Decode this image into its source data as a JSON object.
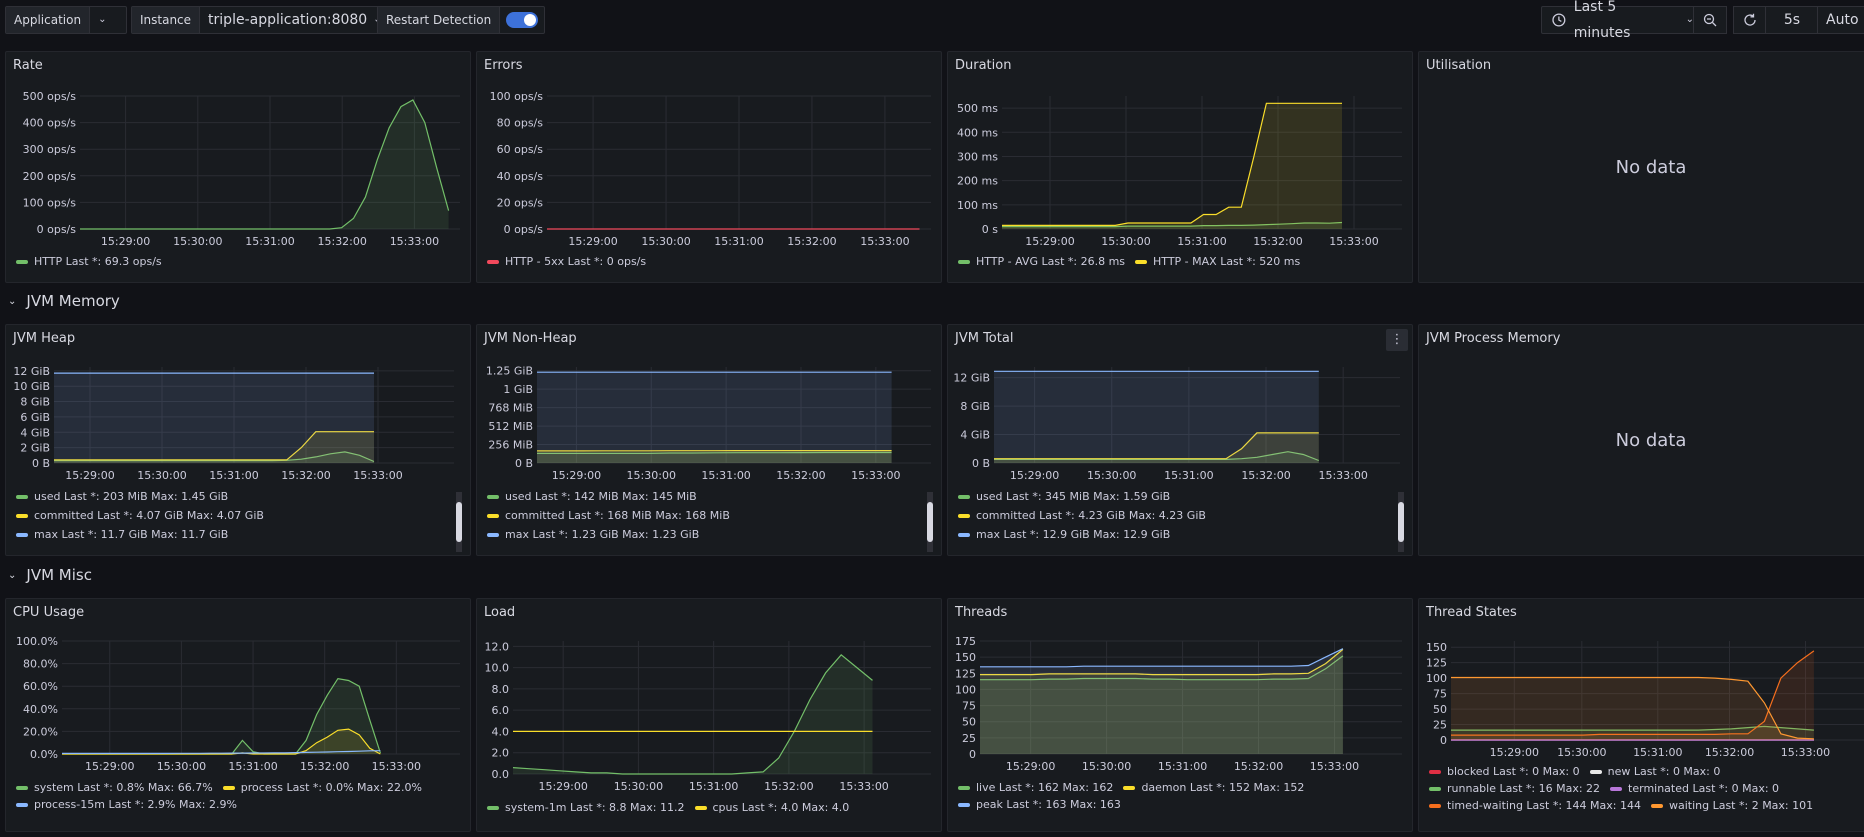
{
  "toolbar": {
    "application_label": "Application",
    "instance_label": "Instance",
    "instance_value": "triple-application:8080",
    "restart_label": "Restart Detection",
    "time_range": "Last 5 minutes",
    "refresh_interval": "5s",
    "auto_label": "Auto"
  },
  "rows": {
    "jvm_memory": "JVM Memory",
    "jvm_misc": "JVM Misc"
  },
  "no_data": "No data",
  "x_ticks": [
    "15:29:00",
    "15:30:00",
    "15:31:00",
    "15:32:00",
    "15:33:00"
  ],
  "colors": {
    "green": "#73bf69",
    "yellow": "#fade2a",
    "blue": "#8ab8ff",
    "red": "#f2495c",
    "orange": "#ff9830",
    "darkorange": "#f56e1d",
    "purple": "#b877d9",
    "white": "#e8e8e8",
    "bred": "#e02f44"
  },
  "panels": {
    "rate": {
      "title": "Rate",
      "y_ticks": [
        "500 ops/s",
        "400 ops/s",
        "300 ops/s",
        "200 ops/s",
        "100 ops/s",
        "0 ops/s"
      ],
      "legend": [
        {
          "color": "green",
          "text": "HTTP  Last *: 69.3 ops/s"
        }
      ]
    },
    "errors": {
      "title": "Errors",
      "y_ticks": [
        "100 ops/s",
        "80 ops/s",
        "60 ops/s",
        "40 ops/s",
        "20 ops/s",
        "0 ops/s"
      ],
      "legend": [
        {
          "color": "red",
          "text": "HTTP - 5xx  Last *: 0 ops/s"
        }
      ]
    },
    "duration": {
      "title": "Duration",
      "y_ticks": [
        "500 ms",
        "400 ms",
        "300 ms",
        "200 ms",
        "100 ms",
        "0 s"
      ],
      "legend": [
        {
          "color": "green",
          "text": "HTTP - AVG  Last *: 26.8 ms"
        },
        {
          "color": "yellow",
          "text": "HTTP - MAX  Last *: 520 ms"
        }
      ]
    },
    "utilisation": {
      "title": "Utilisation"
    },
    "heap": {
      "title": "JVM Heap",
      "y_ticks": [
        "12 GiB",
        "10 GiB",
        "8 GiB",
        "6 GiB",
        "4 GiB",
        "2 GiB",
        "0 B"
      ],
      "legend": [
        {
          "color": "green",
          "text": "used  Last *: 203 MiB  Max: 1.45 GiB"
        },
        {
          "color": "yellow",
          "text": "committed  Last *: 4.07 GiB  Max: 4.07 GiB"
        },
        {
          "color": "blue",
          "text": "max  Last *: 11.7 GiB  Max: 11.7 GiB"
        }
      ]
    },
    "nonheap": {
      "title": "JVM Non-Heap",
      "y_ticks": [
        "1.25 GiB",
        "1 GiB",
        "768 MiB",
        "512 MiB",
        "256 MiB",
        "0 B"
      ],
      "legend": [
        {
          "color": "green",
          "text": "used  Last *: 142 MiB  Max: 145 MiB"
        },
        {
          "color": "yellow",
          "text": "committed  Last *: 168 MiB  Max: 168 MiB"
        },
        {
          "color": "blue",
          "text": "max  Last *: 1.23 GiB  Max: 1.23 GiB"
        }
      ]
    },
    "total": {
      "title": "JVM Total",
      "y_ticks": [
        "12 GiB",
        "8 GiB",
        "4 GiB",
        "0 B"
      ],
      "legend": [
        {
          "color": "green",
          "text": "used  Last *: 345 MiB  Max: 1.59 GiB"
        },
        {
          "color": "yellow",
          "text": "committed  Last *: 4.23 GiB  Max: 4.23 GiB"
        },
        {
          "color": "blue",
          "text": "max  Last *: 12.9 GiB  Max: 12.9 GiB"
        }
      ]
    },
    "process_mem": {
      "title": "JVM Process Memory"
    },
    "cpu": {
      "title": "CPU Usage",
      "y_ticks": [
        "100.0%",
        "80.0%",
        "60.0%",
        "40.0%",
        "20.0%",
        "0.0%"
      ],
      "legend": [
        {
          "color": "green",
          "text": "system  Last *: 0.8%  Max: 66.7%"
        },
        {
          "color": "yellow",
          "text": "process  Last *: 0.0%  Max: 22.0%"
        },
        {
          "color": "blue",
          "text": "process-15m  Last *: 2.9%  Max: 2.9%"
        }
      ]
    },
    "load": {
      "title": "Load",
      "y_ticks": [
        "12.0",
        "10.0",
        "8.0",
        "6.0",
        "4.0",
        "2.0",
        "0.0"
      ],
      "legend": [
        {
          "color": "green",
          "text": "system-1m  Last *: 8.8  Max: 11.2"
        },
        {
          "color": "yellow",
          "text": "cpus  Last *: 4.0  Max: 4.0"
        }
      ]
    },
    "threads": {
      "title": "Threads",
      "y_ticks": [
        "175",
        "150",
        "125",
        "100",
        "75",
        "50",
        "25",
        "0"
      ],
      "legend": [
        {
          "color": "green",
          "text": "live  Last *: 162  Max: 162"
        },
        {
          "color": "yellow",
          "text": "daemon  Last *: 152  Max: 152"
        },
        {
          "color": "blue",
          "text": "peak  Last *: 163  Max: 163"
        }
      ]
    },
    "thread_states": {
      "title": "Thread States",
      "y_ticks": [
        "150",
        "125",
        "100",
        "75",
        "50",
        "25",
        "0"
      ],
      "legend": [
        {
          "color": "bred",
          "text": "blocked  Last *: 0  Max: 0"
        },
        {
          "color": "white",
          "text": "new  Last *: 0  Max: 0"
        },
        {
          "color": "green",
          "text": "runnable  Last *: 16  Max: 22"
        },
        {
          "color": "purple",
          "text": "terminated  Last *: 0  Max: 0"
        },
        {
          "color": "darkorange",
          "text": "timed-waiting  Last *: 144  Max: 144"
        },
        {
          "color": "orange",
          "text": "waiting  Last *: 2  Max: 101"
        }
      ]
    }
  },
  "chart_data": [
    {
      "type": "line",
      "title": "Rate",
      "series": [
        {
          "name": "HTTP",
          "values": [
            0,
            0,
            0,
            0,
            0,
            0,
            0,
            0,
            0,
            0,
            0,
            0,
            0,
            0,
            0,
            0,
            0,
            0,
            0,
            0,
            0,
            0,
            5,
            40,
            120,
            260,
            380,
            460,
            485,
            400,
            230,
            69
          ]
        }
      ]
    },
    {
      "type": "line",
      "title": "Errors",
      "series": [
        {
          "name": "HTTP - 5xx",
          "values": [
            0,
            0,
            0,
            0,
            0,
            0,
            0,
            0,
            0,
            0,
            0,
            0,
            0,
            0,
            0,
            0,
            0,
            0,
            0,
            0,
            0,
            0,
            0,
            0,
            0,
            0,
            0,
            0,
            0,
            0,
            0
          ]
        }
      ]
    },
    {
      "type": "line",
      "title": "Duration",
      "series": [
        {
          "name": "HTTP - AVG",
          "values": [
            10,
            10,
            10,
            10,
            10,
            10,
            10,
            10,
            10,
            10,
            12,
            12,
            12,
            12,
            12,
            12,
            14,
            14,
            15,
            15,
            16,
            18,
            20,
            22,
            25,
            25,
            24,
            26.8
          ]
        },
        {
          "name": "HTTP - MAX",
          "values": [
            15,
            15,
            15,
            15,
            15,
            15,
            15,
            15,
            15,
            15,
            25,
            25,
            25,
            25,
            25,
            25,
            60,
            60,
            90,
            90,
            300,
            520,
            520,
            520,
            520,
            520,
            520,
            520
          ]
        }
      ]
    },
    {
      "type": "line",
      "title": "JVM Heap",
      "series": [
        {
          "name": "used",
          "values": [
            0.3,
            0.3,
            0.3,
            0.3,
            0.3,
            0.3,
            0.3,
            0.3,
            0.3,
            0.3,
            0.3,
            0.3,
            0.3,
            0.3,
            0.3,
            0.3,
            0.35,
            0.5,
            0.8,
            1.2,
            1.45,
            1.0,
            0.2
          ]
        },
        {
          "name": "committed",
          "values": [
            0.4,
            0.4,
            0.4,
            0.4,
            0.4,
            0.4,
            0.4,
            0.4,
            0.4,
            0.4,
            0.4,
            0.4,
            0.4,
            0.4,
            0.4,
            0.4,
            0.4,
            2.0,
            4.07,
            4.07,
            4.07,
            4.07,
            4.07
          ]
        },
        {
          "name": "max",
          "values": [
            11.7,
            11.7,
            11.7,
            11.7,
            11.7,
            11.7,
            11.7,
            11.7,
            11.7,
            11.7,
            11.7,
            11.7,
            11.7,
            11.7,
            11.7,
            11.7,
            11.7,
            11.7,
            11.7,
            11.7,
            11.7,
            11.7,
            11.7
          ]
        }
      ]
    },
    {
      "type": "line",
      "title": "JVM Non-Heap",
      "series": [
        {
          "name": "used",
          "values": [
            0.13,
            0.13,
            0.13,
            0.13,
            0.13,
            0.13,
            0.135,
            0.135,
            0.138,
            0.14,
            0.14,
            0.14,
            0.141,
            0.142,
            0.142,
            0.142,
            0.142
          ]
        },
        {
          "name": "committed",
          "values": [
            0.164,
            0.164,
            0.164,
            0.165,
            0.165,
            0.165,
            0.166,
            0.166,
            0.167,
            0.168,
            0.168,
            0.168,
            0.168,
            0.168,
            0.168,
            0.168,
            0.168
          ]
        },
        {
          "name": "max",
          "values": [
            1.23,
            1.23,
            1.23,
            1.23,
            1.23,
            1.23,
            1.23,
            1.23,
            1.23,
            1.23,
            1.23,
            1.23,
            1.23,
            1.23,
            1.23,
            1.23,
            1.23
          ]
        }
      ]
    },
    {
      "type": "line",
      "title": "JVM Total",
      "series": [
        {
          "name": "used",
          "values": [
            0.5,
            0.5,
            0.5,
            0.5,
            0.5,
            0.5,
            0.5,
            0.5,
            0.5,
            0.5,
            0.5,
            0.5,
            0.5,
            0.5,
            0.5,
            0.5,
            0.6,
            0.8,
            1.2,
            1.59,
            1.2,
            0.345
          ]
        },
        {
          "name": "committed",
          "values": [
            0.6,
            0.6,
            0.6,
            0.6,
            0.6,
            0.6,
            0.6,
            0.6,
            0.6,
            0.6,
            0.6,
            0.6,
            0.6,
            0.6,
            0.6,
            0.6,
            2.0,
            4.23,
            4.23,
            4.23,
            4.23,
            4.23
          ]
        },
        {
          "name": "max",
          "values": [
            12.9,
            12.9,
            12.9,
            12.9,
            12.9,
            12.9,
            12.9,
            12.9,
            12.9,
            12.9,
            12.9,
            12.9,
            12.9,
            12.9,
            12.9,
            12.9,
            12.9,
            12.9,
            12.9,
            12.9,
            12.9,
            12.9
          ]
        }
      ]
    },
    {
      "type": "line",
      "title": "CPU Usage",
      "series": [
        {
          "name": "system",
          "values": [
            0,
            0,
            0,
            0,
            0,
            0,
            0,
            0,
            0,
            0,
            0,
            0,
            0,
            0,
            0,
            0,
            0,
            12,
            2,
            0,
            0,
            0,
            0,
            12,
            35,
            52,
            66.7,
            65,
            60,
            30,
            0.8
          ]
        },
        {
          "name": "process",
          "values": [
            0,
            0,
            0,
            0,
            0,
            0,
            0,
            0,
            0,
            0,
            0,
            0,
            0,
            0,
            0,
            0,
            0,
            1,
            0,
            0,
            0,
            0,
            0,
            3,
            10,
            15,
            21,
            22,
            17,
            5,
            0
          ]
        },
        {
          "name": "process-15m",
          "values": [
            0.5,
            0.5,
            0.5,
            0.5,
            0.5,
            0.5,
            0.5,
            0.5,
            0.5,
            0.5,
            0.5,
            0.6,
            0.6,
            0.6,
            0.7,
            0.7,
            0.8,
            0.8,
            0.9,
            0.9,
            1.0,
            1.0,
            1.2,
            1.4,
            1.6,
            1.8,
            2.0,
            2.2,
            2.5,
            2.8,
            2.9
          ]
        }
      ]
    },
    {
      "type": "line",
      "title": "Load",
      "series": [
        {
          "name": "system-1m",
          "values": [
            0.6,
            0.5,
            0.4,
            0.3,
            0.2,
            0.1,
            0.1,
            0,
            0,
            0,
            0,
            0,
            0,
            0,
            0,
            0.1,
            0.2,
            1.5,
            4.0,
            7.0,
            9.5,
            11.2,
            10.0,
            8.8
          ]
        },
        {
          "name": "cpus",
          "values": [
            4,
            4,
            4,
            4,
            4,
            4,
            4,
            4,
            4,
            4,
            4,
            4,
            4,
            4,
            4,
            4,
            4,
            4,
            4,
            4,
            4,
            4,
            4,
            4
          ]
        }
      ]
    },
    {
      "type": "line",
      "title": "Threads",
      "series": [
        {
          "name": "live",
          "values": [
            123,
            123,
            123,
            123,
            124,
            124,
            124,
            124,
            124,
            124,
            123,
            123,
            123,
            123,
            123,
            123,
            123,
            124,
            124,
            125,
            140,
            162
          ]
        },
        {
          "name": "daemon",
          "values": [
            115,
            115,
            115,
            115,
            116,
            116,
            117,
            117,
            117,
            117,
            116,
            116,
            115,
            115,
            115,
            115,
            115,
            116,
            116,
            117,
            132,
            152
          ]
        },
        {
          "name": "peak",
          "values": [
            135,
            135,
            135,
            135,
            135,
            135,
            136,
            136,
            136,
            136,
            136,
            136,
            136,
            136,
            136,
            136,
            136,
            136,
            136,
            137,
            150,
            163
          ]
        }
      ]
    },
    {
      "type": "line",
      "title": "Thread States",
      "series": [
        {
          "name": "blocked",
          "values": [
            0,
            0,
            0,
            0,
            0,
            0,
            0,
            0,
            0,
            0,
            0,
            0,
            0,
            0,
            0,
            0,
            0,
            0,
            0,
            0,
            0,
            0,
            0
          ]
        },
        {
          "name": "new",
          "values": [
            0,
            0,
            0,
            0,
            0,
            0,
            0,
            0,
            0,
            0,
            0,
            0,
            0,
            0,
            0,
            0,
            0,
            0,
            0,
            0,
            0,
            0,
            0
          ]
        },
        {
          "name": "runnable",
          "values": [
            16,
            16,
            16,
            16,
            16,
            16,
            16,
            16,
            16,
            16,
            16,
            16,
            16,
            16,
            16,
            16,
            17,
            18,
            20,
            22,
            20,
            18,
            16
          ]
        },
        {
          "name": "terminated",
          "values": [
            0,
            0,
            0,
            0,
            0,
            0,
            0,
            0,
            0,
            0,
            0,
            0,
            0,
            0,
            0,
            0,
            0,
            0,
            0,
            0,
            0,
            0,
            0
          ]
        },
        {
          "name": "timed-waiting",
          "values": [
            8,
            8,
            8,
            8,
            8,
            8,
            8,
            8,
            8,
            9,
            9,
            9,
            9,
            9,
            9,
            9,
            9,
            10,
            10,
            30,
            100,
            125,
            144
          ]
        },
        {
          "name": "waiting",
          "values": [
            101,
            101,
            101,
            101,
            101,
            101,
            101,
            101,
            101,
            101,
            101,
            101,
            101,
            101,
            101,
            101,
            100,
            98,
            95,
            60,
            10,
            3,
            2
          ]
        }
      ]
    }
  ]
}
